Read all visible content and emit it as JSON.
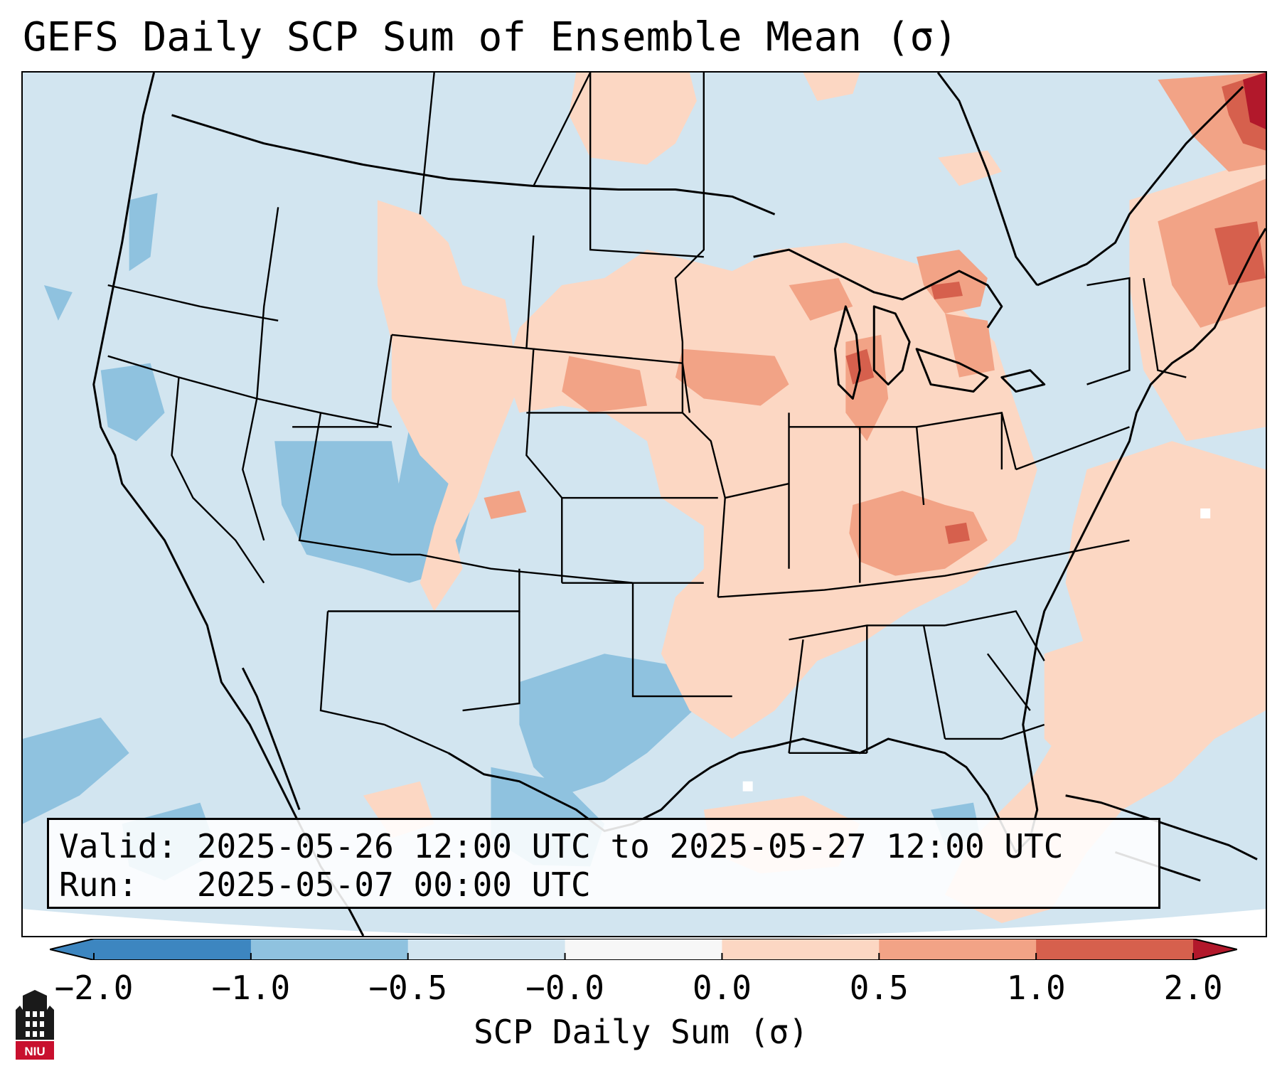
{
  "title": "GEFS Daily SCP Sum of Ensemble Mean (σ)",
  "info": {
    "valid_line": "Valid: 2025-05-26 12:00 UTC to 2025-05-27 12:00 UTC",
    "run_line": "Run:   2025-05-07 00:00 UTC"
  },
  "colorbar": {
    "label": "SCP Daily Sum (σ)",
    "ticks": [
      "−2.0",
      "−1.0",
      "−0.5",
      "−0.0",
      "0.0",
      "0.5",
      "1.0",
      "2.0"
    ],
    "colors": [
      "#3d86c0",
      "#8fc2df",
      "#d2e5f0",
      "#f7f7f7",
      "#fcd7c3",
      "#f2a386",
      "#d6604d",
      "#b2182b"
    ],
    "extend": "both"
  },
  "logo": {
    "text": "NIU",
    "color": "#c8102e"
  }
}
